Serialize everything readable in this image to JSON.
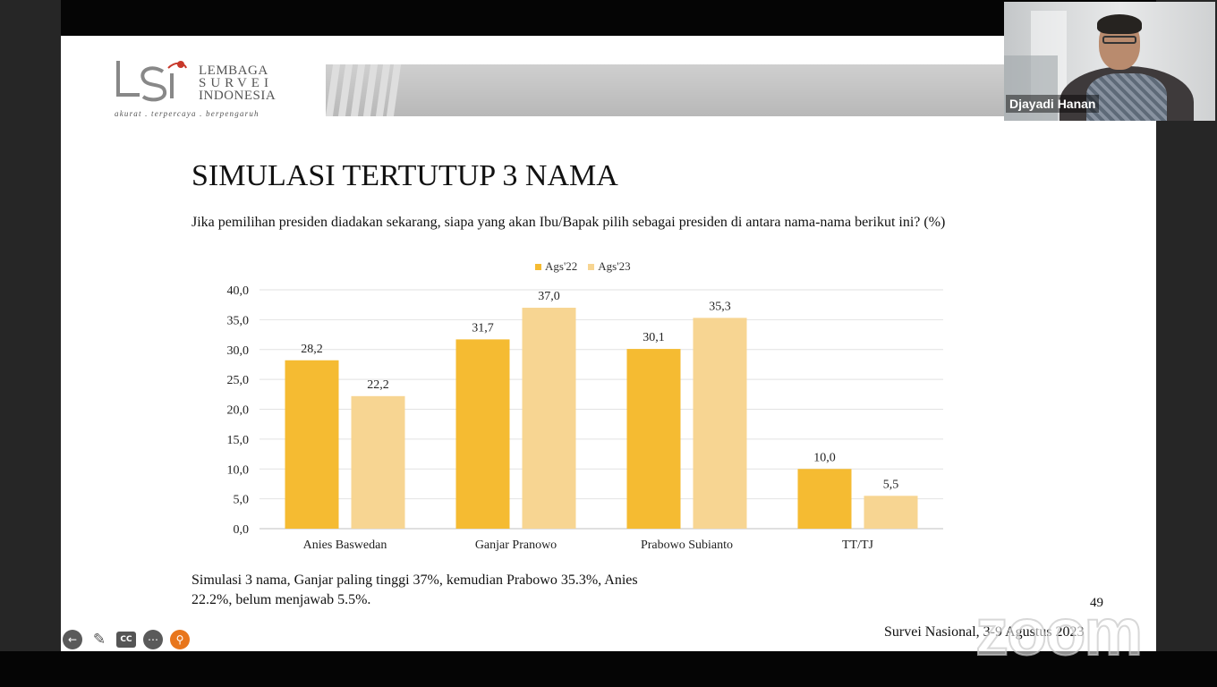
{
  "presenter": {
    "name": "Djayadi Hanan"
  },
  "logo": {
    "line1": "LEMBAGA",
    "line2": "SURVEI",
    "line3": "INDONESIA",
    "tagline": "akurat . terpercaya . berpengaruh",
    "accent_color": "#c8382a"
  },
  "slide": {
    "title": "SIMULASI TERTUTUP 3 NAMA",
    "question": "Jika pemilihan presiden diadakan sekarang, siapa yang akan Ibu/Bapak pilih sebagai presiden di antara nama-nama berikut ini?  (%)",
    "summary_line1": "Simulasi 3 nama, Ganjar paling tinggi 37%, kemudian Prabowo 35.3%, Anies",
    "summary_line2": "22.2%, belum menjawab 5.5%.",
    "page_number": "49",
    "footer": "Survei Nasional, 3-9 Agustus 2023"
  },
  "chart_data": {
    "type": "bar",
    "categories": [
      "Anies Baswedan",
      "Ganjar Pranowo",
      "Prabowo Subianto",
      "TT/TJ"
    ],
    "series": [
      {
        "name": "Ags'22",
        "values": [
          28.2,
          31.7,
          30.1,
          10.0
        ],
        "labels": [
          "28,2",
          "31,7",
          "30,1",
          "10,0"
        ],
        "color": "#f5bb32"
      },
      {
        "name": "Ags'23",
        "values": [
          22.2,
          37.0,
          35.3,
          5.5
        ],
        "labels": [
          "22,2",
          "37,0",
          "35,3",
          "5,5"
        ],
        "color": "#f7d592"
      }
    ],
    "ylim": [
      0,
      40
    ],
    "yticks": [
      "0,0",
      "5,0",
      "10,0",
      "15,0",
      "20,0",
      "25,0",
      "30,0",
      "35,0",
      "40,0"
    ],
    "grid": true,
    "legend": "top-center",
    "title": "",
    "xlabel": "",
    "ylabel": ""
  },
  "controls": {
    "back_icon": "arrow-left-icon",
    "pen_icon": "pen-icon",
    "cc_label": "CC",
    "more_icon": "more-icon",
    "zoom_icon": "zoom-icon"
  },
  "watermark": "zoom"
}
